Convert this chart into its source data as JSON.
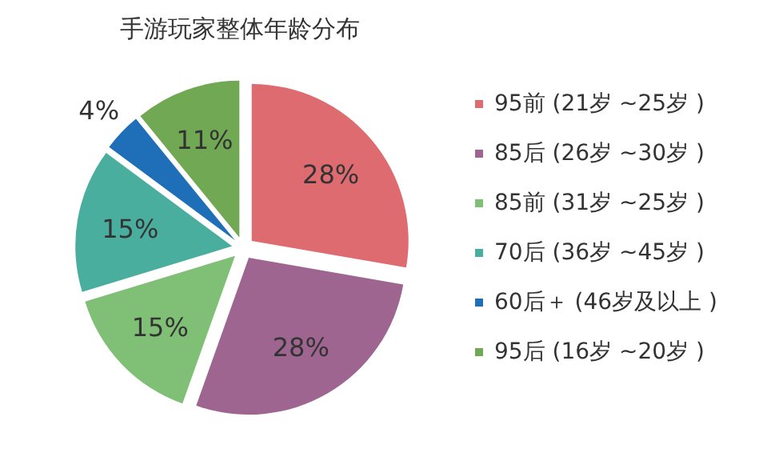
{
  "chart_data": {
    "type": "pie",
    "title": "手游玩家整体年龄分布",
    "categories": [
      "95前 (21岁 ~25岁 )",
      "85后 (26岁 ~30岁 )",
      "85前 (31岁 ~25岁 )",
      "70后 (36岁 ~45岁 )",
      "60后＋ (46岁及以上 )",
      "95后 (16岁 ~20岁 )"
    ],
    "values": [
      28,
      28,
      15,
      15,
      4,
      11
    ],
    "colors": [
      "#dd6b70",
      "#9e6591",
      "#80bf76",
      "#4aae9e",
      "#1f6fb8",
      "#70a853"
    ],
    "value_labels": [
      "28%",
      "28%",
      "15%",
      "15%",
      "4%",
      "11%"
    ],
    "legend": "right"
  }
}
